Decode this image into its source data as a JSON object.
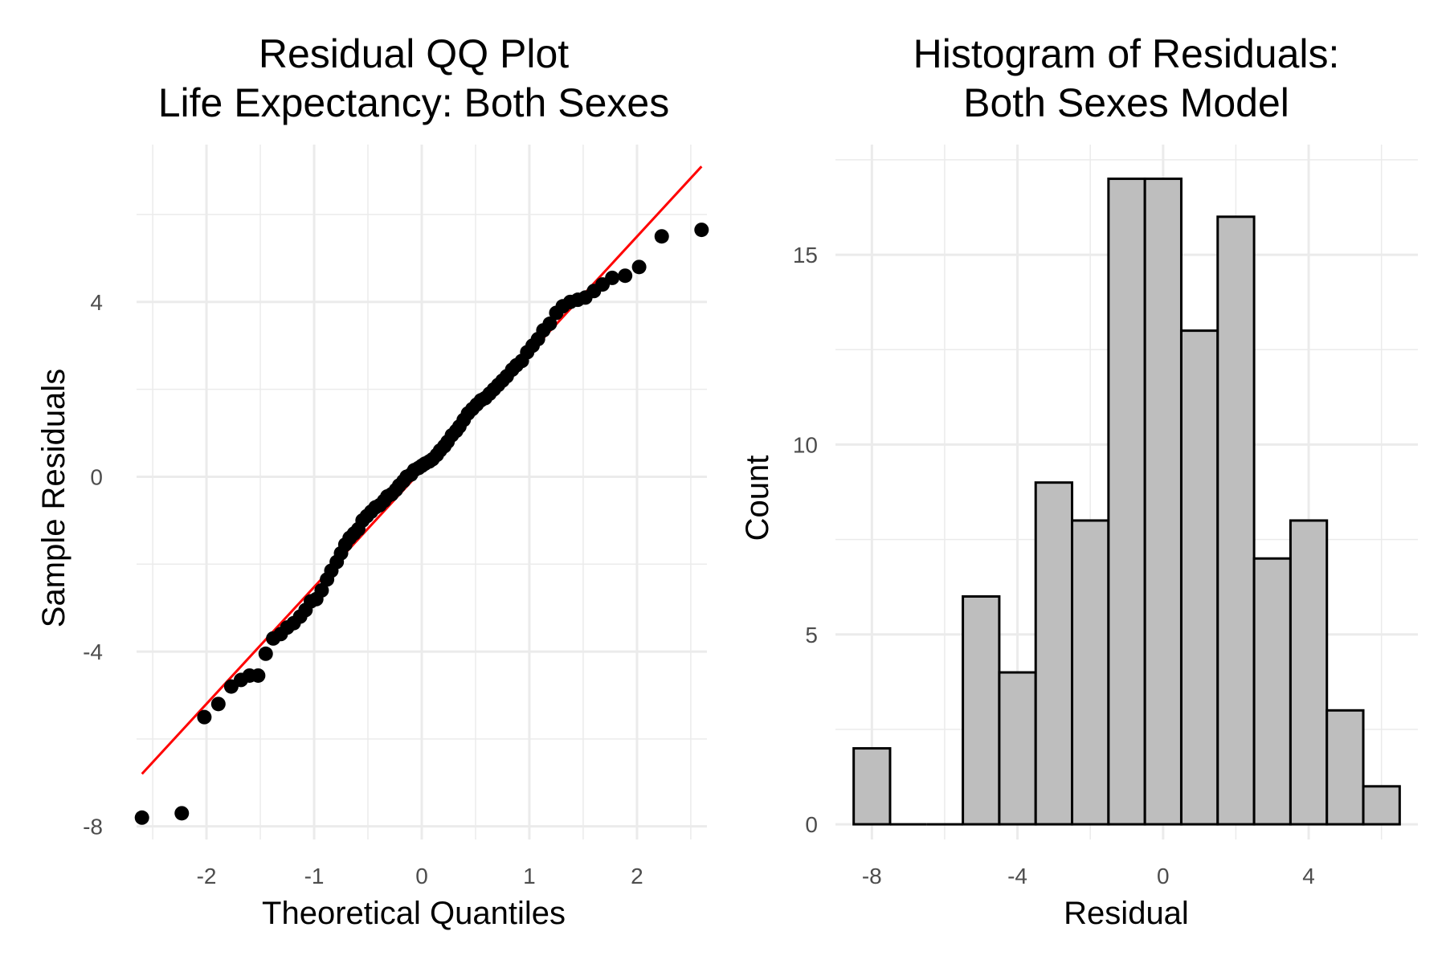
{
  "colors": {
    "qq_line": "#ff0000",
    "points": "#000000",
    "bar_fill": "#bebebe",
    "bar_stroke": "#000000",
    "grid": "#ebebeb"
  },
  "chart_data": [
    {
      "type": "scatter",
      "title_line1": "Residual QQ Plot",
      "title_line2": "Life Expectancy: Both Sexes",
      "xlabel": "Theoretical Quantiles",
      "ylabel": "Sample Residuals",
      "xlim": [
        -2.65,
        2.65
      ],
      "ylim": [
        -8.3,
        7.6
      ],
      "x_ticks": [
        -2,
        -1,
        0,
        1,
        2
      ],
      "x_tick_labels": [
        "-2",
        "-1",
        "0",
        "1",
        "2"
      ],
      "y_ticks": [
        -8,
        -4,
        0,
        4
      ],
      "y_tick_labels": [
        "-8",
        "-4",
        "0",
        "4"
      ],
      "grid": true,
      "reference_line": {
        "x": [
          -2.6,
          2.6
        ],
        "y": [
          -6.8,
          7.1
        ]
      },
      "points": [
        [
          -2.6,
          -7.8
        ],
        [
          -2.23,
          -7.7
        ],
        [
          -2.02,
          -5.5
        ],
        [
          -1.89,
          -5.2
        ],
        [
          -1.77,
          -4.8
        ],
        [
          -1.68,
          -4.65
        ],
        [
          -1.6,
          -4.55
        ],
        [
          -1.52,
          -4.55
        ],
        [
          -1.45,
          -4.05
        ],
        [
          -1.38,
          -3.7
        ],
        [
          -1.31,
          -3.6
        ],
        [
          -1.25,
          -3.45
        ],
        [
          -1.19,
          -3.35
        ],
        [
          -1.13,
          -3.2
        ],
        [
          -1.08,
          -3.05
        ],
        [
          -1.03,
          -2.85
        ],
        [
          -0.98,
          -2.8
        ],
        [
          -0.93,
          -2.6
        ],
        [
          -0.88,
          -2.35
        ],
        [
          -0.84,
          -2.15
        ],
        [
          -0.79,
          -1.95
        ],
        [
          -0.75,
          -1.75
        ],
        [
          -0.71,
          -1.55
        ],
        [
          -0.67,
          -1.4
        ],
        [
          -0.63,
          -1.3
        ],
        [
          -0.59,
          -1.2
        ],
        [
          -0.55,
          -1.0
        ],
        [
          -0.51,
          -0.9
        ],
        [
          -0.47,
          -0.8
        ],
        [
          -0.43,
          -0.7
        ],
        [
          -0.39,
          -0.65
        ],
        [
          -0.35,
          -0.55
        ],
        [
          -0.32,
          -0.45
        ],
        [
          -0.28,
          -0.4
        ],
        [
          -0.24,
          -0.3
        ],
        [
          -0.21,
          -0.2
        ],
        [
          -0.17,
          -0.1
        ],
        [
          -0.14,
          0.0
        ],
        [
          -0.1,
          0.05
        ],
        [
          -0.07,
          0.15
        ],
        [
          -0.03,
          0.2
        ],
        [
          0.0,
          0.25
        ],
        [
          0.03,
          0.3
        ],
        [
          0.07,
          0.35
        ],
        [
          0.1,
          0.4
        ],
        [
          0.14,
          0.5
        ],
        [
          0.17,
          0.6
        ],
        [
          0.21,
          0.7
        ],
        [
          0.24,
          0.8
        ],
        [
          0.28,
          0.95
        ],
        [
          0.32,
          1.05
        ],
        [
          0.35,
          1.15
        ],
        [
          0.39,
          1.3
        ],
        [
          0.43,
          1.45
        ],
        [
          0.47,
          1.55
        ],
        [
          0.51,
          1.65
        ],
        [
          0.55,
          1.75
        ],
        [
          0.59,
          1.8
        ],
        [
          0.63,
          1.9
        ],
        [
          0.67,
          2.0
        ],
        [
          0.71,
          2.1
        ],
        [
          0.75,
          2.2
        ],
        [
          0.79,
          2.3
        ],
        [
          0.84,
          2.45
        ],
        [
          0.88,
          2.55
        ],
        [
          0.93,
          2.65
        ],
        [
          0.98,
          2.85
        ],
        [
          1.03,
          3.0
        ],
        [
          1.08,
          3.15
        ],
        [
          1.13,
          3.35
        ],
        [
          1.19,
          3.5
        ],
        [
          1.25,
          3.75
        ],
        [
          1.31,
          3.9
        ],
        [
          1.38,
          4.0
        ],
        [
          1.45,
          4.05
        ],
        [
          1.52,
          4.1
        ],
        [
          1.6,
          4.25
        ],
        [
          1.68,
          4.4
        ],
        [
          1.77,
          4.55
        ],
        [
          1.89,
          4.6
        ],
        [
          2.02,
          4.8
        ],
        [
          2.23,
          5.5
        ],
        [
          2.6,
          5.65
        ]
      ]
    },
    {
      "type": "bar",
      "title_line1": "Histogram of Residuals:",
      "title_line2": "Both Sexes Model",
      "xlabel": "Residual",
      "ylabel": "Count",
      "xlim": [
        -9.0,
        7.0
      ],
      "ylim": [
        -0.4,
        17.9
      ],
      "x_ticks": [
        -8,
        -4,
        0,
        4
      ],
      "x_tick_labels": [
        "-8",
        "-4",
        "0",
        "4"
      ],
      "y_ticks": [
        0,
        5,
        10,
        15
      ],
      "y_tick_labels": [
        "0",
        "5",
        "10",
        "15"
      ],
      "grid": true,
      "bin_width": 1,
      "bin_centers": [
        -8,
        -7,
        -6,
        -5,
        -4,
        -3,
        -2,
        -1,
        0,
        1,
        2,
        3,
        4,
        5,
        6
      ],
      "counts": [
        2,
        0,
        0,
        6,
        4,
        9,
        8,
        17,
        17,
        13,
        16,
        7,
        8,
        3,
        1
      ]
    }
  ]
}
